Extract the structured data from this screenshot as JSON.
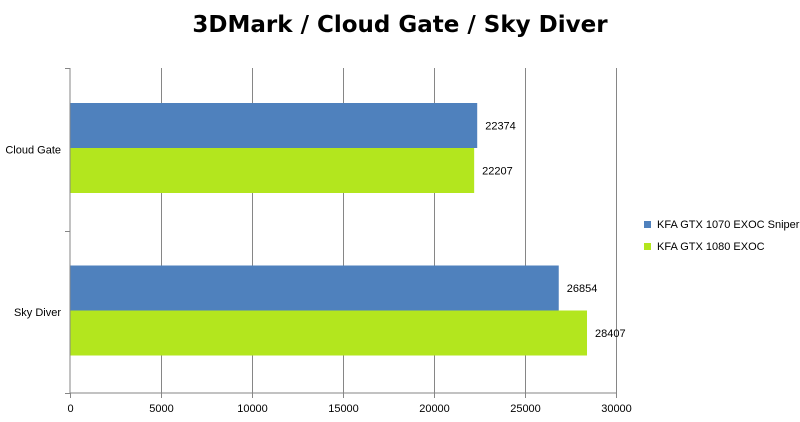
{
  "chart_data": {
    "type": "bar",
    "orientation": "horizontal",
    "title": "3DMark / Cloud Gate / Sky Diver",
    "categories": [
      "Cloud Gate",
      "Sky Diver"
    ],
    "series": [
      {
        "name": "KFA GTX 1070 EXOC Sniper",
        "color": "#4f81bd",
        "values": [
          22374,
          26854
        ]
      },
      {
        "name": "KFA GTX 1080 EXOC",
        "color": "#b3e61e",
        "values": [
          22207,
          28407
        ]
      }
    ],
    "xlim": [
      0,
      30000
    ],
    "xticks": [
      "0",
      "5000",
      "10000",
      "15000",
      "20000",
      "25000",
      "30000"
    ],
    "grid": true,
    "legend_position": "right"
  }
}
